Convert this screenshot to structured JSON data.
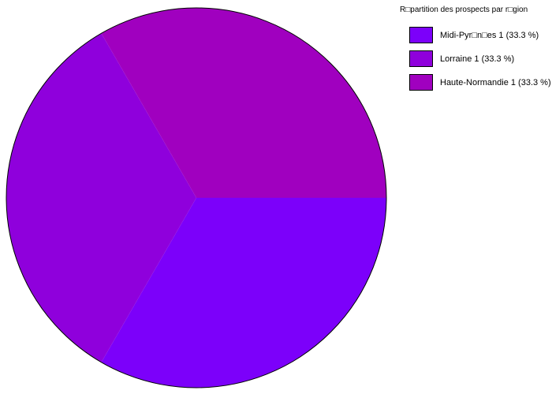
{
  "chart_data": {
    "type": "pie",
    "title": "R□partition des prospects par r□gion",
    "legend_position": "top-right",
    "start_angle_deg": 0,
    "direction": "clockwise",
    "background": "#ffffff",
    "outline_color": "#000000",
    "slices": [
      {
        "name": "Midi-Pyr□n□es",
        "label": "Midi-Pyr□n□es 1 (33.3 %)",
        "value": 1,
        "pct": 33.3,
        "color": "#7c00fa"
      },
      {
        "name": "Lorraine",
        "label": "Lorraine 1 (33.3 %)",
        "value": 1,
        "pct": 33.3,
        "color": "#8f00dc"
      },
      {
        "name": "Haute-Normandie",
        "label": "Haute-Normandie 1 (33.3 %)",
        "value": 1,
        "pct": 33.3,
        "color": "#a000bf"
      }
    ]
  }
}
